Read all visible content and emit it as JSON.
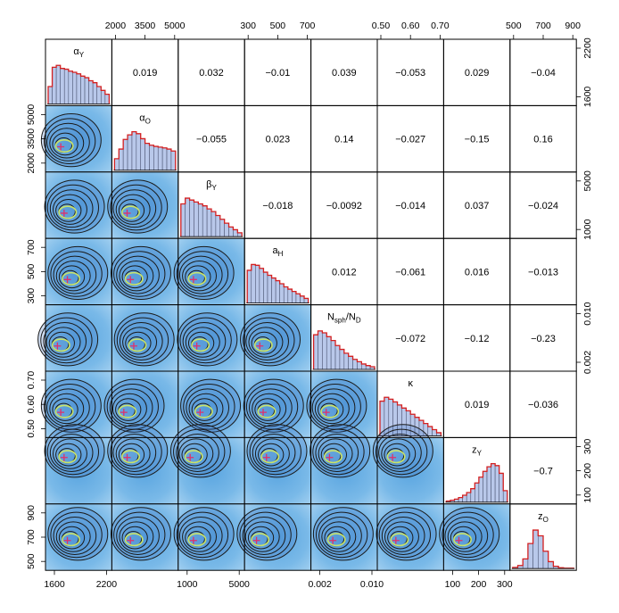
{
  "chart_data": {
    "type": "scatter-matrix",
    "parameters": [
      {
        "key": "alpha_Y",
        "base": "α",
        "sub": "Y",
        "tail": ""
      },
      {
        "key": "alpha_O",
        "base": "α",
        "sub": "O",
        "tail": ""
      },
      {
        "key": "beta_Y",
        "base": "β",
        "sub": "Y",
        "tail": ""
      },
      {
        "key": "a_H",
        "base": "a",
        "sub": "H",
        "tail": ""
      },
      {
        "key": "Nsph_ND",
        "base": "N",
        "sub": "sph",
        "tail": "/N",
        "sub2": "D"
      },
      {
        "key": "kappa",
        "base": "κ",
        "sub": "",
        "tail": ""
      },
      {
        "key": "z_Y",
        "base": "z",
        "sub": "Y",
        "tail": ""
      },
      {
        "key": "z_O",
        "base": "z",
        "sub": "O",
        "tail": ""
      }
    ],
    "correlations": [
      [
        "0.019",
        "0.032",
        "−0.01",
        "0.039",
        "−0.053",
        "0.029",
        "−0.04"
      ],
      [
        "−0.055",
        "0.023",
        "0.14",
        "−0.027",
        "−0.15",
        "0.16"
      ],
      [
        "−0.018",
        "−0.0092",
        "−0.014",
        "0.037",
        "−0.024"
      ],
      [
        "0.012",
        "−0.061",
        "0.016",
        "−0.013"
      ],
      [
        "−0.072",
        "−0.12",
        "−0.23"
      ],
      [
        "0.019",
        "−0.036"
      ],
      [
        "−0.7"
      ]
    ],
    "axis_ticks": {
      "top": [
        {
          "col": 1,
          "labels": [
            "2000",
            "3500",
            "5000"
          ]
        },
        {
          "col": 3,
          "labels": [
            "300",
            "500",
            "700"
          ]
        },
        {
          "col": 5,
          "labels": [
            "0.50",
            "0.60",
            "0.70"
          ]
        },
        {
          "col": 7,
          "labels": [
            "500",
            "700",
            "900"
          ]
        }
      ],
      "bottom": [
        {
          "col": 0,
          "labels": [
            "1600",
            "2200"
          ]
        },
        {
          "col": 2,
          "labels": [
            "1000",
            "5000"
          ]
        },
        {
          "col": 4,
          "labels": [
            "0.002",
            "0.010"
          ]
        },
        {
          "col": 6,
          "labels": [
            "100",
            "200",
            "300"
          ]
        }
      ],
      "left": [
        {
          "row": 1,
          "labels": [
            "5000",
            "3500",
            "2000"
          ]
        },
        {
          "row": 3,
          "labels": [
            "700",
            "500",
            "300"
          ]
        },
        {
          "row": 5,
          "labels": [
            "0.70",
            "0.60",
            "0.50"
          ]
        },
        {
          "row": 7,
          "labels": [
            "900",
            "700",
            "500"
          ]
        }
      ],
      "right": [
        {
          "row": 0,
          "labels": [
            "2200",
            "1600"
          ]
        },
        {
          "row": 2,
          "labels": [
            "5000",
            "1000"
          ]
        },
        {
          "row": 4,
          "labels": [
            "0.010",
            "0.002"
          ]
        },
        {
          "row": 6,
          "labels": [
            "300",
            "200",
            "100"
          ]
        }
      ]
    },
    "histograms": [
      [
        0.45,
        0.95,
        1.0,
        0.92,
        0.9,
        0.85,
        0.82,
        0.78,
        0.72,
        0.68,
        0.6,
        0.55,
        0.45,
        0.35,
        0.25
      ],
      [
        0.3,
        0.55,
        0.8,
        0.92,
        1.0,
        0.95,
        0.82,
        0.7,
        0.65,
        0.62,
        0.6,
        0.58,
        0.55,
        0.5
      ],
      [
        0.85,
        1.0,
        0.95,
        0.9,
        0.85,
        0.8,
        0.72,
        0.65,
        0.55,
        0.45,
        0.35,
        0.25,
        0.18,
        0.1
      ],
      [
        0.85,
        1.0,
        0.98,
        0.9,
        0.8,
        0.72,
        0.65,
        0.58,
        0.5,
        0.42,
        0.36,
        0.3,
        0.24,
        0.18,
        0.12
      ],
      [
        0.9,
        1.0,
        0.95,
        0.85,
        0.75,
        0.62,
        0.52,
        0.42,
        0.34,
        0.26,
        0.2,
        0.14,
        0.1,
        0.07
      ],
      [
        0.9,
        1.0,
        0.95,
        0.88,
        0.8,
        0.72,
        0.65,
        0.56,
        0.48,
        0.4,
        0.32,
        0.24,
        0.16,
        0.08
      ],
      [
        0.03,
        0.05,
        0.08,
        0.12,
        0.18,
        0.25,
        0.35,
        0.5,
        0.65,
        0.8,
        0.92,
        1.0,
        0.95,
        0.75,
        0.3
      ],
      [
        0.03,
        0.08,
        0.25,
        0.65,
        1.0,
        0.85,
        0.45,
        0.18,
        0.06,
        0.02,
        0.01,
        0.01
      ]
    ],
    "modes": [
      0.38,
      0.4,
      0.2,
      0.3,
      0.25,
      0.2,
      0.7,
      0.3
    ]
  }
}
